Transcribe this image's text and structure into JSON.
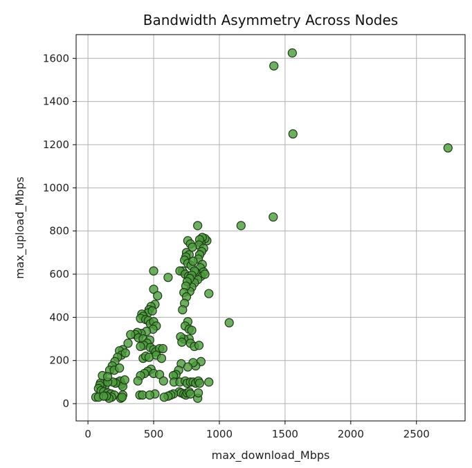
{
  "chart_data": {
    "type": "scatter",
    "title": "Bandwidth Asymmetry Across Nodes",
    "xlabel": "max_download_Mbps",
    "ylabel": "max_upload_Mbps",
    "xlim": [
      -90,
      2870
    ],
    "ylim": [
      -80,
      1710
    ],
    "xticks": [
      0,
      500,
      1000,
      1500,
      2000,
      2500
    ],
    "yticks": [
      0,
      200,
      400,
      600,
      800,
      1000,
      1200,
      1400,
      1600
    ],
    "grid": true,
    "legend": "none",
    "marker_color": "#4c9a3c",
    "marker_edge_color": "#1b3a14",
    "points": [
      [
        1555,
        1625
      ],
      [
        1415,
        1565
      ],
      [
        1560,
        1250
      ],
      [
        2740,
        1185
      ],
      [
        1410,
        865
      ],
      [
        1165,
        825
      ],
      [
        1075,
        375
      ],
      [
        920,
        510
      ],
      [
        835,
        825
      ],
      [
        905,
        755
      ],
      [
        890,
        765
      ],
      [
        870,
        770
      ],
      [
        860,
        745
      ],
      [
        850,
        760
      ],
      [
        845,
        735
      ],
      [
        880,
        720
      ],
      [
        865,
        705
      ],
      [
        850,
        690
      ],
      [
        840,
        670
      ],
      [
        870,
        645
      ],
      [
        855,
        630
      ],
      [
        880,
        610
      ],
      [
        860,
        590
      ],
      [
        890,
        600
      ],
      [
        835,
        575
      ],
      [
        810,
        560
      ],
      [
        790,
        540
      ],
      [
        775,
        520
      ],
      [
        760,
        755
      ],
      [
        780,
        740
      ],
      [
        795,
        725
      ],
      [
        750,
        700
      ],
      [
        770,
        690
      ],
      [
        745,
        680
      ],
      [
        735,
        665
      ],
      [
        760,
        650
      ],
      [
        785,
        640
      ],
      [
        800,
        660
      ],
      [
        720,
        615
      ],
      [
        700,
        615
      ],
      [
        740,
        600
      ],
      [
        765,
        590
      ],
      [
        820,
        610
      ],
      [
        810,
        615
      ],
      [
        790,
        595
      ],
      [
        775,
        580
      ],
      [
        755,
        565
      ],
      [
        745,
        545
      ],
      [
        730,
        515
      ],
      [
        750,
        495
      ],
      [
        735,
        465
      ],
      [
        720,
        435
      ],
      [
        760,
        380
      ],
      [
        740,
        360
      ],
      [
        770,
        345
      ],
      [
        790,
        340
      ],
      [
        770,
        300
      ],
      [
        730,
        300
      ],
      [
        705,
        310
      ],
      [
        715,
        285
      ],
      [
        780,
        280
      ],
      [
        810,
        265
      ],
      [
        845,
        270
      ],
      [
        860,
        195
      ],
      [
        820,
        175
      ],
      [
        800,
        190
      ],
      [
        710,
        185
      ],
      [
        760,
        170
      ],
      [
        690,
        155
      ],
      [
        670,
        135
      ],
      [
        650,
        130
      ],
      [
        655,
        100
      ],
      [
        700,
        100
      ],
      [
        740,
        105
      ],
      [
        755,
        95
      ],
      [
        780,
        100
      ],
      [
        800,
        100
      ],
      [
        820,
        95
      ],
      [
        840,
        105
      ],
      [
        850,
        95
      ],
      [
        920,
        100
      ],
      [
        695,
        55
      ],
      [
        710,
        50
      ],
      [
        730,
        45
      ],
      [
        745,
        40
      ],
      [
        755,
        50
      ],
      [
        770,
        55
      ],
      [
        780,
        45
      ],
      [
        650,
        45
      ],
      [
        630,
        40
      ],
      [
        610,
        35
      ],
      [
        580,
        30
      ],
      [
        510,
        45
      ],
      [
        835,
        25
      ],
      [
        840,
        50
      ],
      [
        500,
        615
      ],
      [
        500,
        530
      ],
      [
        530,
        500
      ],
      [
        610,
        585
      ],
      [
        510,
        460
      ],
      [
        480,
        450
      ],
      [
        465,
        435
      ],
      [
        455,
        420
      ],
      [
        490,
        430
      ],
      [
        410,
        415
      ],
      [
        420,
        405
      ],
      [
        400,
        395
      ],
      [
        440,
        390
      ],
      [
        460,
        385
      ],
      [
        475,
        370
      ],
      [
        500,
        380
      ],
      [
        520,
        360
      ],
      [
        495,
        345
      ],
      [
        445,
        335
      ],
      [
        405,
        325
      ],
      [
        375,
        330
      ],
      [
        360,
        320
      ],
      [
        385,
        305
      ],
      [
        420,
        300
      ],
      [
        470,
        295
      ],
      [
        450,
        280
      ],
      [
        425,
        270
      ],
      [
        400,
        265
      ],
      [
        475,
        260
      ],
      [
        500,
        250
      ],
      [
        515,
        240
      ],
      [
        545,
        255
      ],
      [
        570,
        255
      ],
      [
        325,
        320
      ],
      [
        305,
        280
      ],
      [
        265,
        250
      ],
      [
        240,
        245
      ],
      [
        255,
        225
      ],
      [
        285,
        235
      ],
      [
        225,
        215
      ],
      [
        205,
        195
      ],
      [
        185,
        175
      ],
      [
        165,
        155
      ],
      [
        200,
        155
      ],
      [
        240,
        165
      ],
      [
        420,
        210
      ],
      [
        440,
        220
      ],
      [
        465,
        215
      ],
      [
        520,
        225
      ],
      [
        560,
        210
      ],
      [
        480,
        160
      ],
      [
        455,
        150
      ],
      [
        430,
        140
      ],
      [
        400,
        130
      ],
      [
        500,
        140
      ],
      [
        545,
        135
      ],
      [
        575,
        105
      ],
      [
        380,
        105
      ],
      [
        130,
        85
      ],
      [
        110,
        90
      ],
      [
        95,
        95
      ],
      [
        105,
        75
      ],
      [
        90,
        85
      ],
      [
        80,
        70
      ],
      [
        100,
        60
      ],
      [
        120,
        55
      ],
      [
        150,
        50
      ],
      [
        175,
        45
      ],
      [
        200,
        40
      ],
      [
        180,
        30
      ],
      [
        160,
        25
      ],
      [
        140,
        35
      ],
      [
        60,
        30
      ],
      [
        80,
        30
      ],
      [
        120,
        35
      ],
      [
        230,
        100
      ],
      [
        255,
        90
      ],
      [
        245,
        105
      ],
      [
        265,
        80
      ],
      [
        210,
        95
      ],
      [
        190,
        100
      ],
      [
        150,
        100
      ],
      [
        280,
        110
      ],
      [
        110,
        130
      ],
      [
        150,
        125
      ],
      [
        265,
        40
      ],
      [
        250,
        25
      ],
      [
        260,
        30
      ],
      [
        395,
        40
      ],
      [
        415,
        40
      ],
      [
        470,
        40
      ]
    ]
  }
}
